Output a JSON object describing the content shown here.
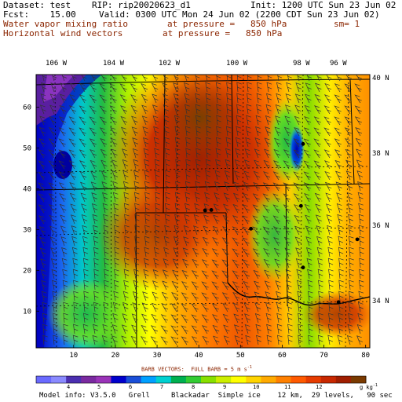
{
  "header": {
    "dataset": "Dataset: test",
    "rip": "RIP: rip20020623_d1",
    "init": "Init: 1200 UTC Sun 23 Jun 02",
    "fcst": "Fcst:    15.00",
    "valid": "Valid: 0300 UTC Mon 24 Jun 02 (2200 CDT Sun 23 Jun 02)",
    "field1_name": "Water vapor mixing ratio",
    "field1_level": "at pressure =   850 hPa",
    "field1_extra": "sm= 1",
    "field2_name": "Horizontal wind vectors",
    "field2_level": "at pressure =   850 hPa"
  },
  "map": {
    "top_lon_labels": [
      "106 W",
      "104 W",
      "102 W",
      "100 W",
      "98 W",
      "96 W"
    ],
    "right_lat_labels": [
      "40 N",
      "38 N",
      "36 N",
      "34 N"
    ],
    "x_ticks": [
      "10",
      "20",
      "30",
      "40",
      "50",
      "60",
      "70",
      "80"
    ],
    "y_ticks": [
      "10",
      "20",
      "30",
      "40",
      "50",
      "60"
    ]
  },
  "legend": {
    "barb_note": "BARB VECTORS:  FULL BARB = 5 m s",
    "barb_sup": "-1",
    "labels": [
      "4",
      "5",
      "6",
      "7",
      "8",
      "9",
      "10",
      "11",
      "12"
    ],
    "units": "g kg",
    "units_sup": "-1",
    "colors": [
      "#6a6aff",
      "#8a8aff",
      "#4b2fb0",
      "#7a2aa0",
      "#9a33b8",
      "#0000cc",
      "#1a4fd8",
      "#00a0ff",
      "#00d0d0",
      "#00b050",
      "#33cc33",
      "#88e000",
      "#ccee00",
      "#ffff00",
      "#ffd400",
      "#ffaa00",
      "#ff8000",
      "#ff5a00",
      "#e63c00",
      "#c82800",
      "#a01e00",
      "#7a3a00"
    ]
  },
  "footer": {
    "model_info": "Model info: V3.5.0   Grell     Blackadar  Simple ice    12 km,  29 levels,   90 sec"
  },
  "chart_data": {
    "type": "heatmap",
    "title": "Water vapor mixing ratio",
    "xlabel": "",
    "ylabel": "",
    "xlim": [
      1,
      81
    ],
    "ylim": [
      1,
      68
    ],
    "units": "g kg-1",
    "contour_levels": [
      4,
      5,
      6,
      7,
      8,
      9,
      10,
      11,
      12
    ],
    "grid": true,
    "station_points": [
      {
        "x": 41.5,
        "y": 34.7
      },
      {
        "x": 43.0,
        "y": 34.8
      },
      {
        "x": 52.5,
        "y": 30.2
      },
      {
        "x": 65.0,
        "y": 51.0
      },
      {
        "x": 64.5,
        "y": 35.8
      },
      {
        "x": 65.0,
        "y": 20.7
      },
      {
        "x": 78.0,
        "y": 27.6
      },
      {
        "x": 73.5,
        "y": 12.2
      }
    ]
  }
}
